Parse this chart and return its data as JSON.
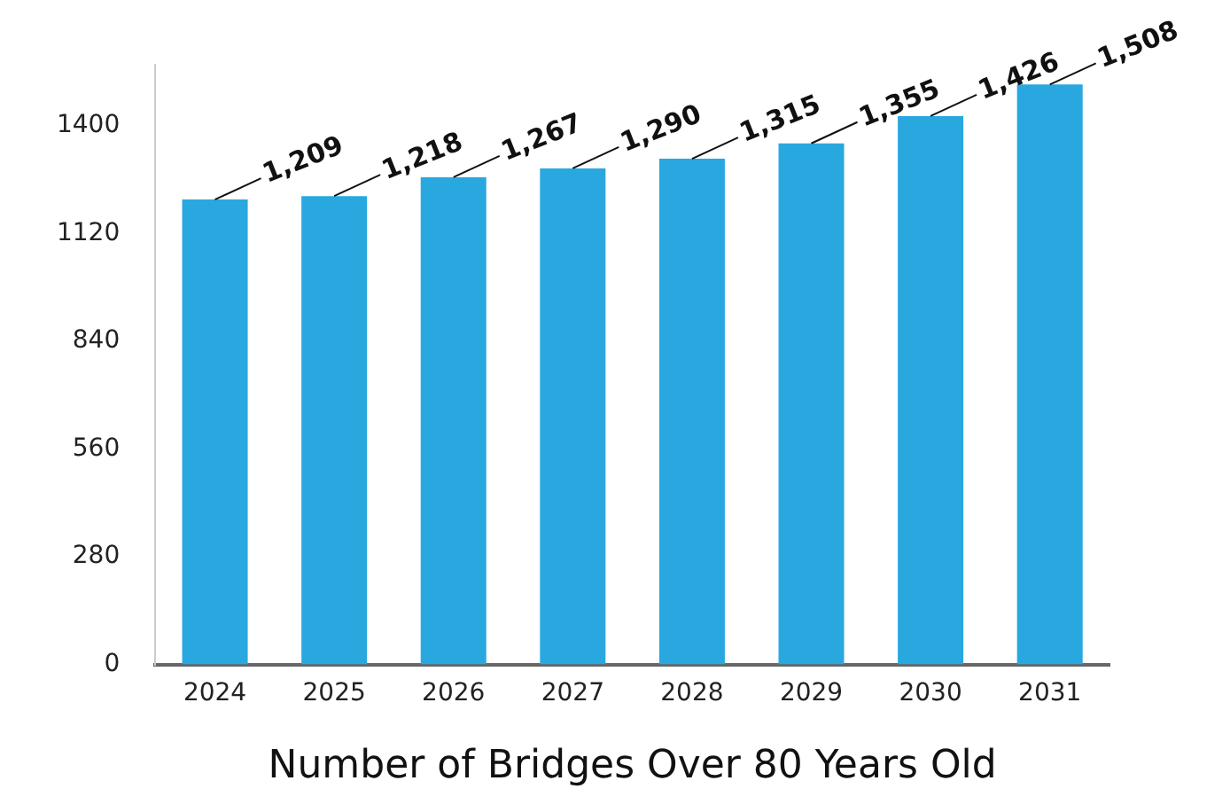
{
  "chart_data": {
    "type": "bar",
    "xlabel": "Number of Bridges Over 80 Years Old",
    "categories": [
      "2024",
      "2025",
      "2026",
      "2027",
      "2028",
      "2029",
      "2030",
      "2031"
    ],
    "values": [
      1209,
      1218,
      1267,
      1290,
      1315,
      1355,
      1426,
      1508
    ],
    "color": "#29a8e0",
    "ylim": [
      0,
      1560
    ],
    "yticks": [
      0,
      280,
      560,
      840,
      1120,
      1400
    ],
    "value_labels": [
      "1,209",
      "1,218",
      "1,267",
      "1,290",
      "1,315",
      "1,355",
      "1,426",
      "1,508"
    ],
    "grid": false,
    "legend": false
  }
}
